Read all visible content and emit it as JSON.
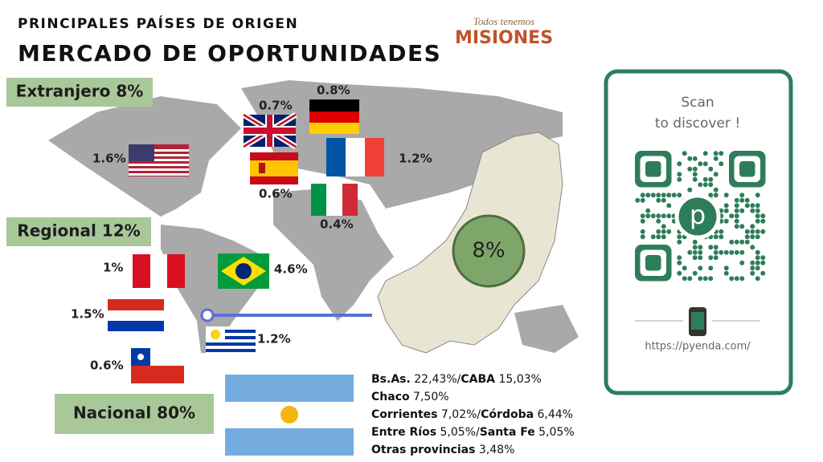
{
  "header": {
    "subtitle": "PRINCIPALES PAÍSES DE ORIGEN",
    "title": "MERCADO DE OPORTUNIDADES"
  },
  "logo": {
    "tagline": "Todos tenemos",
    "name": "MISIONES"
  },
  "segments": {
    "foreign": "Extranjero 8%",
    "regional": "Regional 12%",
    "national": "Nacional 80%"
  },
  "map_highlight": "8%",
  "countries": {
    "usa": "1.6%",
    "uk": "0.7%",
    "germany": "0.8%",
    "spain": "0.6%",
    "france": "1.2%",
    "italy": "0.4%",
    "peru": "1%",
    "brazil": "4.6%",
    "paraguay": "1.5%",
    "uruguay": "1.2%",
    "chile": "0.6%"
  },
  "provinces": [
    [
      {
        "text": "Bs.As.",
        "bold": true
      },
      {
        "text": " 22,43%/",
        "bold": false
      },
      {
        "text": "CABA",
        "bold": true
      },
      {
        "text": " 15,03%",
        "bold": false
      }
    ],
    [
      {
        "text": "Chaco",
        "bold": true
      },
      {
        "text": " 7,50%",
        "bold": false
      }
    ],
    [
      {
        "text": "Corrientes",
        "bold": true
      },
      {
        "text": " 7,02%/",
        "bold": false
      },
      {
        "text": "Córdoba",
        "bold": true
      },
      {
        "text": " 6,44%",
        "bold": false
      }
    ],
    [
      {
        "text": "Entre Ríos",
        "bold": true
      },
      {
        "text": " 5,05%/",
        "bold": false
      },
      {
        "text": "Santa Fe",
        "bold": true
      },
      {
        "text": " 5,05%",
        "bold": false
      }
    ],
    [
      {
        "text": "Otras provincias",
        "bold": true
      },
      {
        "text": " 3,48%",
        "bold": false
      }
    ]
  ],
  "qr_card": {
    "line1": "Scan",
    "line2": "to discover !",
    "logo_letter": "p",
    "url": "https://pyenda.com/"
  }
}
